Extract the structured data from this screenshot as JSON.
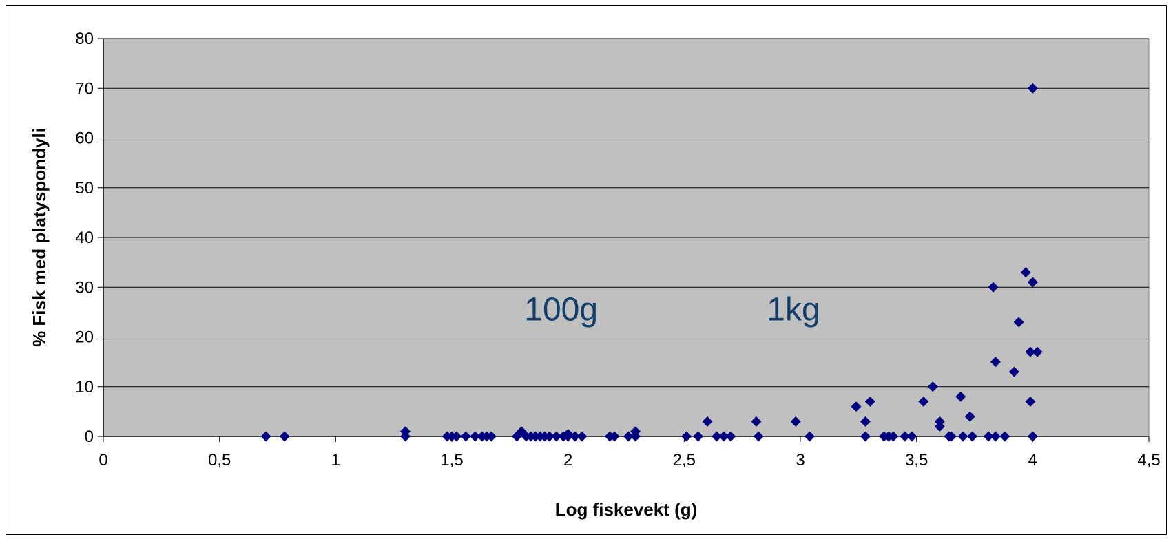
{
  "chart_data": {
    "type": "scatter",
    "title": "",
    "xlabel": "Log fiskevekt (g)",
    "ylabel": "% Fisk med platyspondyli",
    "xlim": [
      0,
      4.5
    ],
    "ylim": [
      0,
      80
    ],
    "x_ticks": [
      0,
      0.5,
      1,
      1.5,
      2,
      2.5,
      3,
      3.5,
      4,
      4.5
    ],
    "x_tick_labels": [
      "0",
      "0,5",
      "1",
      "1,5",
      "2",
      "2,5",
      "3",
      "3,5",
      "4",
      "4,5"
    ],
    "y_ticks": [
      0,
      10,
      20,
      30,
      40,
      50,
      60,
      70,
      80
    ],
    "y_tick_labels": [
      "0",
      "10",
      "20",
      "30",
      "40",
      "50",
      "60",
      "70",
      "80"
    ],
    "grid": "horizontal",
    "plot_background": "#c0c0c0",
    "marker": "diamond",
    "marker_color": "#000080",
    "annotations": [
      {
        "text": "100g",
        "x": 2.0,
        "y": 25
      },
      {
        "text": "1kg",
        "x": 3.0,
        "y": 25
      }
    ],
    "series": [
      {
        "points": [
          [
            0.7,
            0
          ],
          [
            0.78,
            0
          ],
          [
            1.3,
            1
          ],
          [
            1.3,
            0
          ],
          [
            1.48,
            0
          ],
          [
            1.5,
            0
          ],
          [
            1.52,
            0
          ],
          [
            1.56,
            0
          ],
          [
            1.6,
            0
          ],
          [
            1.63,
            0
          ],
          [
            1.65,
            0
          ],
          [
            1.67,
            0
          ],
          [
            1.78,
            0
          ],
          [
            1.79,
            0.5
          ],
          [
            1.8,
            1
          ],
          [
            1.82,
            0
          ],
          [
            1.84,
            0
          ],
          [
            1.86,
            0
          ],
          [
            1.88,
            0
          ],
          [
            1.9,
            0
          ],
          [
            1.92,
            0
          ],
          [
            1.95,
            0
          ],
          [
            1.98,
            0
          ],
          [
            2.0,
            0
          ],
          [
            2.0,
            0.5
          ],
          [
            2.03,
            0
          ],
          [
            2.06,
            0
          ],
          [
            2.18,
            0
          ],
          [
            2.2,
            0
          ],
          [
            2.26,
            0
          ],
          [
            2.29,
            1
          ],
          [
            2.29,
            0
          ],
          [
            2.51,
            0
          ],
          [
            2.56,
            0
          ],
          [
            2.6,
            3
          ],
          [
            2.64,
            0
          ],
          [
            2.67,
            0
          ],
          [
            2.7,
            0
          ],
          [
            2.81,
            3
          ],
          [
            2.82,
            0
          ],
          [
            2.98,
            3
          ],
          [
            3.04,
            0
          ],
          [
            3.24,
            6
          ],
          [
            3.28,
            3
          ],
          [
            3.28,
            0
          ],
          [
            3.3,
            7
          ],
          [
            3.36,
            0
          ],
          [
            3.38,
            0
          ],
          [
            3.4,
            0
          ],
          [
            3.45,
            0
          ],
          [
            3.48,
            0
          ],
          [
            3.53,
            7
          ],
          [
            3.57,
            10
          ],
          [
            3.6,
            3
          ],
          [
            3.6,
            2
          ],
          [
            3.64,
            0
          ],
          [
            3.65,
            0
          ],
          [
            3.69,
            8
          ],
          [
            3.7,
            0
          ],
          [
            3.73,
            4
          ],
          [
            3.74,
            0
          ],
          [
            3.81,
            0
          ],
          [
            3.83,
            30
          ],
          [
            3.84,
            15
          ],
          [
            3.84,
            0
          ],
          [
            3.88,
            0
          ],
          [
            3.92,
            13
          ],
          [
            3.94,
            23
          ],
          [
            3.97,
            33
          ],
          [
            3.99,
            17
          ],
          [
            3.99,
            7
          ],
          [
            4.0,
            70
          ],
          [
            4.0,
            31
          ],
          [
            4.0,
            0
          ],
          [
            4.02,
            17
          ]
        ]
      }
    ]
  }
}
